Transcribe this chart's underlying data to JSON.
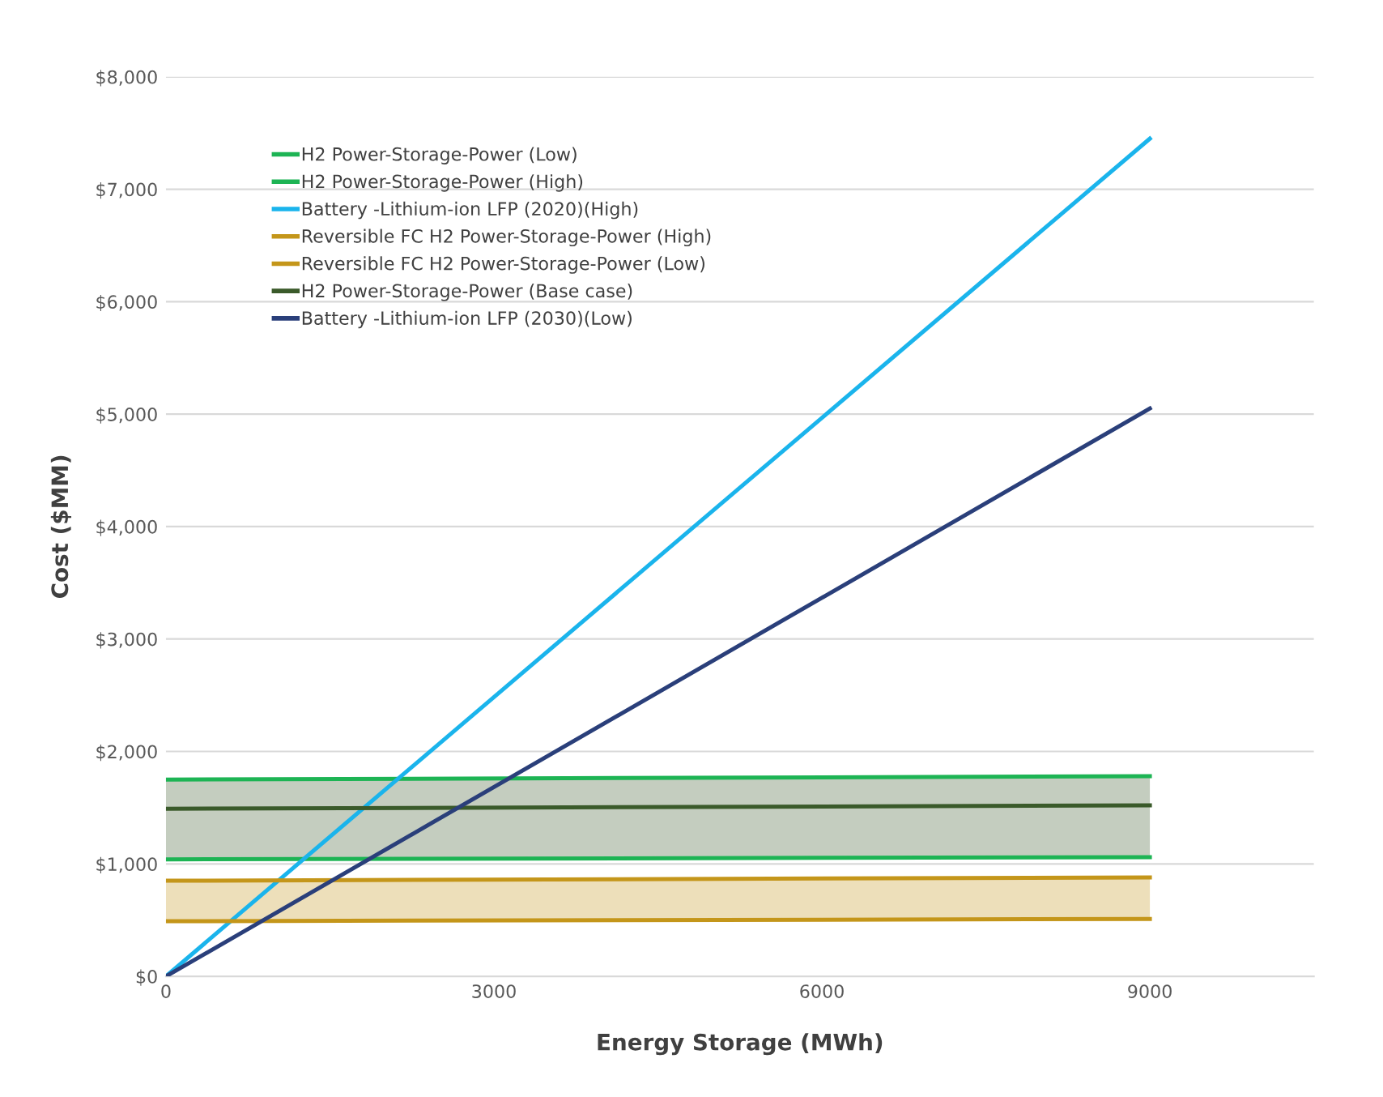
{
  "chart_data": {
    "type": "line",
    "xlabel": "Energy Storage (MWh)",
    "ylabel": "Cost ($MM)",
    "x": [
      0,
      9000
    ],
    "xlim": [
      0,
      10500
    ],
    "xticks": [
      0,
      3000,
      6000,
      9000
    ],
    "ylim": [
      0,
      8000
    ],
    "yticks": [
      {
        "value": 0,
        "label": "$0"
      },
      {
        "value": 1000,
        "label": "$1,000"
      },
      {
        "value": 2000,
        "label": "$2,000"
      },
      {
        "value": 3000,
        "label": "$3,000"
      },
      {
        "value": 4000,
        "label": "$4,000"
      },
      {
        "value": 5000,
        "label": "$5,000"
      },
      {
        "value": 6000,
        "label": "$6,000"
      },
      {
        "value": 7000,
        "label": "$7,000"
      },
      {
        "value": 8000,
        "label": "$8,000"
      }
    ],
    "grid": "y",
    "legend": "top left",
    "marker": "none",
    "line_style": "solid",
    "series": [
      {
        "name": "H2 Power-Storage-Power (Low)",
        "color": "#1db454",
        "values": [
          1040,
          1060
        ]
      },
      {
        "name": "H2 Power-Storage-Power (High)",
        "color": "#1db454",
        "values": [
          1750,
          1780
        ]
      },
      {
        "name": "Battery -Lithium-ion LFP (2020)(High)",
        "color": "#1ab4ec",
        "values": [
          0,
          7450
        ]
      },
      {
        "name": "Reversible FC H2 Power-Storage-Power (High)",
        "color": "#c4961a",
        "values": [
          850,
          880
        ]
      },
      {
        "name": "Reversible FC H2 Power-Storage-Power (Low)",
        "color": "#c4961a",
        "values": [
          490,
          510
        ],
        "lower": [
          490,
          510
        ],
        "upper": [
          850,
          880
        ]
      },
      {
        "name": "H2 Power-Storage-Power (Base case)",
        "color": "#3a5a2a",
        "values": [
          1490,
          1520
        ],
        "lower": [
          1040,
          1060
        ],
        "upper": [
          1750,
          1780
        ]
      },
      {
        "name": "Battery -Lithium-ion LFP (2030)(Low)",
        "color": "#2a3f7a",
        "values": [
          0,
          5050
        ]
      }
    ]
  }
}
